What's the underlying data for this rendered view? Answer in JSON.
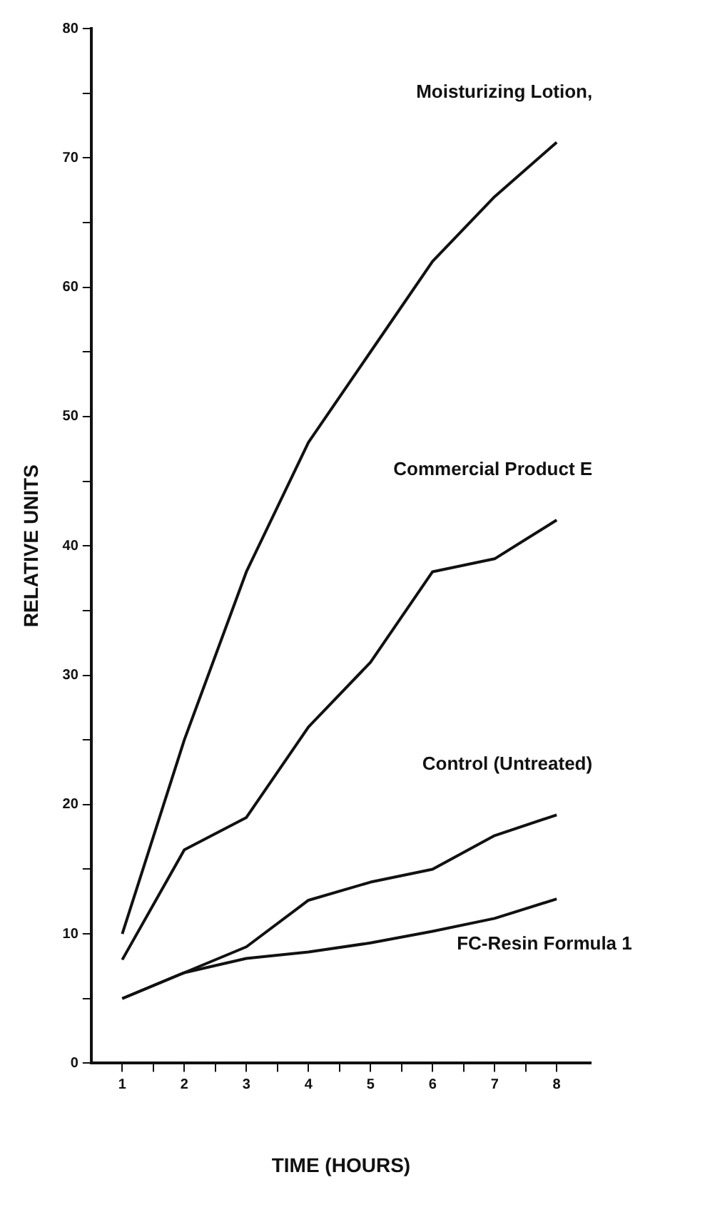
{
  "chart_data": {
    "type": "line",
    "xlabel": "TIME (HOURS)",
    "ylabel": "RELATIVE UNITS",
    "x": [
      1,
      2,
      3,
      4,
      5,
      6,
      7,
      8
    ],
    "series": [
      {
        "name": "Moisturizing Lotion,",
        "color": "#111111",
        "values": [
          10,
          25,
          38,
          48,
          55,
          62,
          67,
          71.2
        ]
      },
      {
        "name": "Commercial Product E",
        "color": "#111111",
        "values": [
          8,
          16.5,
          19,
          26,
          31,
          38,
          39,
          42
        ]
      },
      {
        "name": "Control (Untreated)",
        "color": "#111111",
        "values": [
          5,
          7,
          9,
          12.6,
          14,
          15,
          17.6,
          19.2
        ]
      },
      {
        "name": "FC-Resin Formula 1",
        "color": "#111111",
        "values": [
          5,
          7,
          8.1,
          8.6,
          9.3,
          10.2,
          11.2,
          12.7
        ]
      }
    ],
    "xlim": [
      0.5,
      8.55
    ],
    "xticks": [
      1,
      {
        "value": 1.5,
        "label": null
      },
      2,
      {
        "value": 2.5,
        "label": null
      },
      3,
      {
        "value": 3.5,
        "label": null
      },
      4,
      {
        "value": 4.5,
        "label": null
      },
      5,
      {
        "value": 5.5,
        "label": null
      },
      6,
      {
        "value": 6.5,
        "label": null
      },
      7,
      {
        "value": 7.5,
        "label": null
      },
      8
    ],
    "ylim": [
      0,
      80
    ],
    "yticks": [
      0,
      {
        "value": 5,
        "label": null
      },
      10,
      {
        "value": 15,
        "label": null
      },
      20,
      {
        "value": 25,
        "label": null
      },
      30,
      {
        "value": 35,
        "label": null
      },
      40,
      {
        "value": 45,
        "label": null
      },
      50,
      {
        "value": 55,
        "label": null
      },
      60,
      {
        "value": 65,
        "label": null
      },
      70,
      {
        "value": 75,
        "label": null
      },
      80
    ],
    "grid": false,
    "legend": false,
    "marker": "none",
    "line_style": "solid"
  }
}
